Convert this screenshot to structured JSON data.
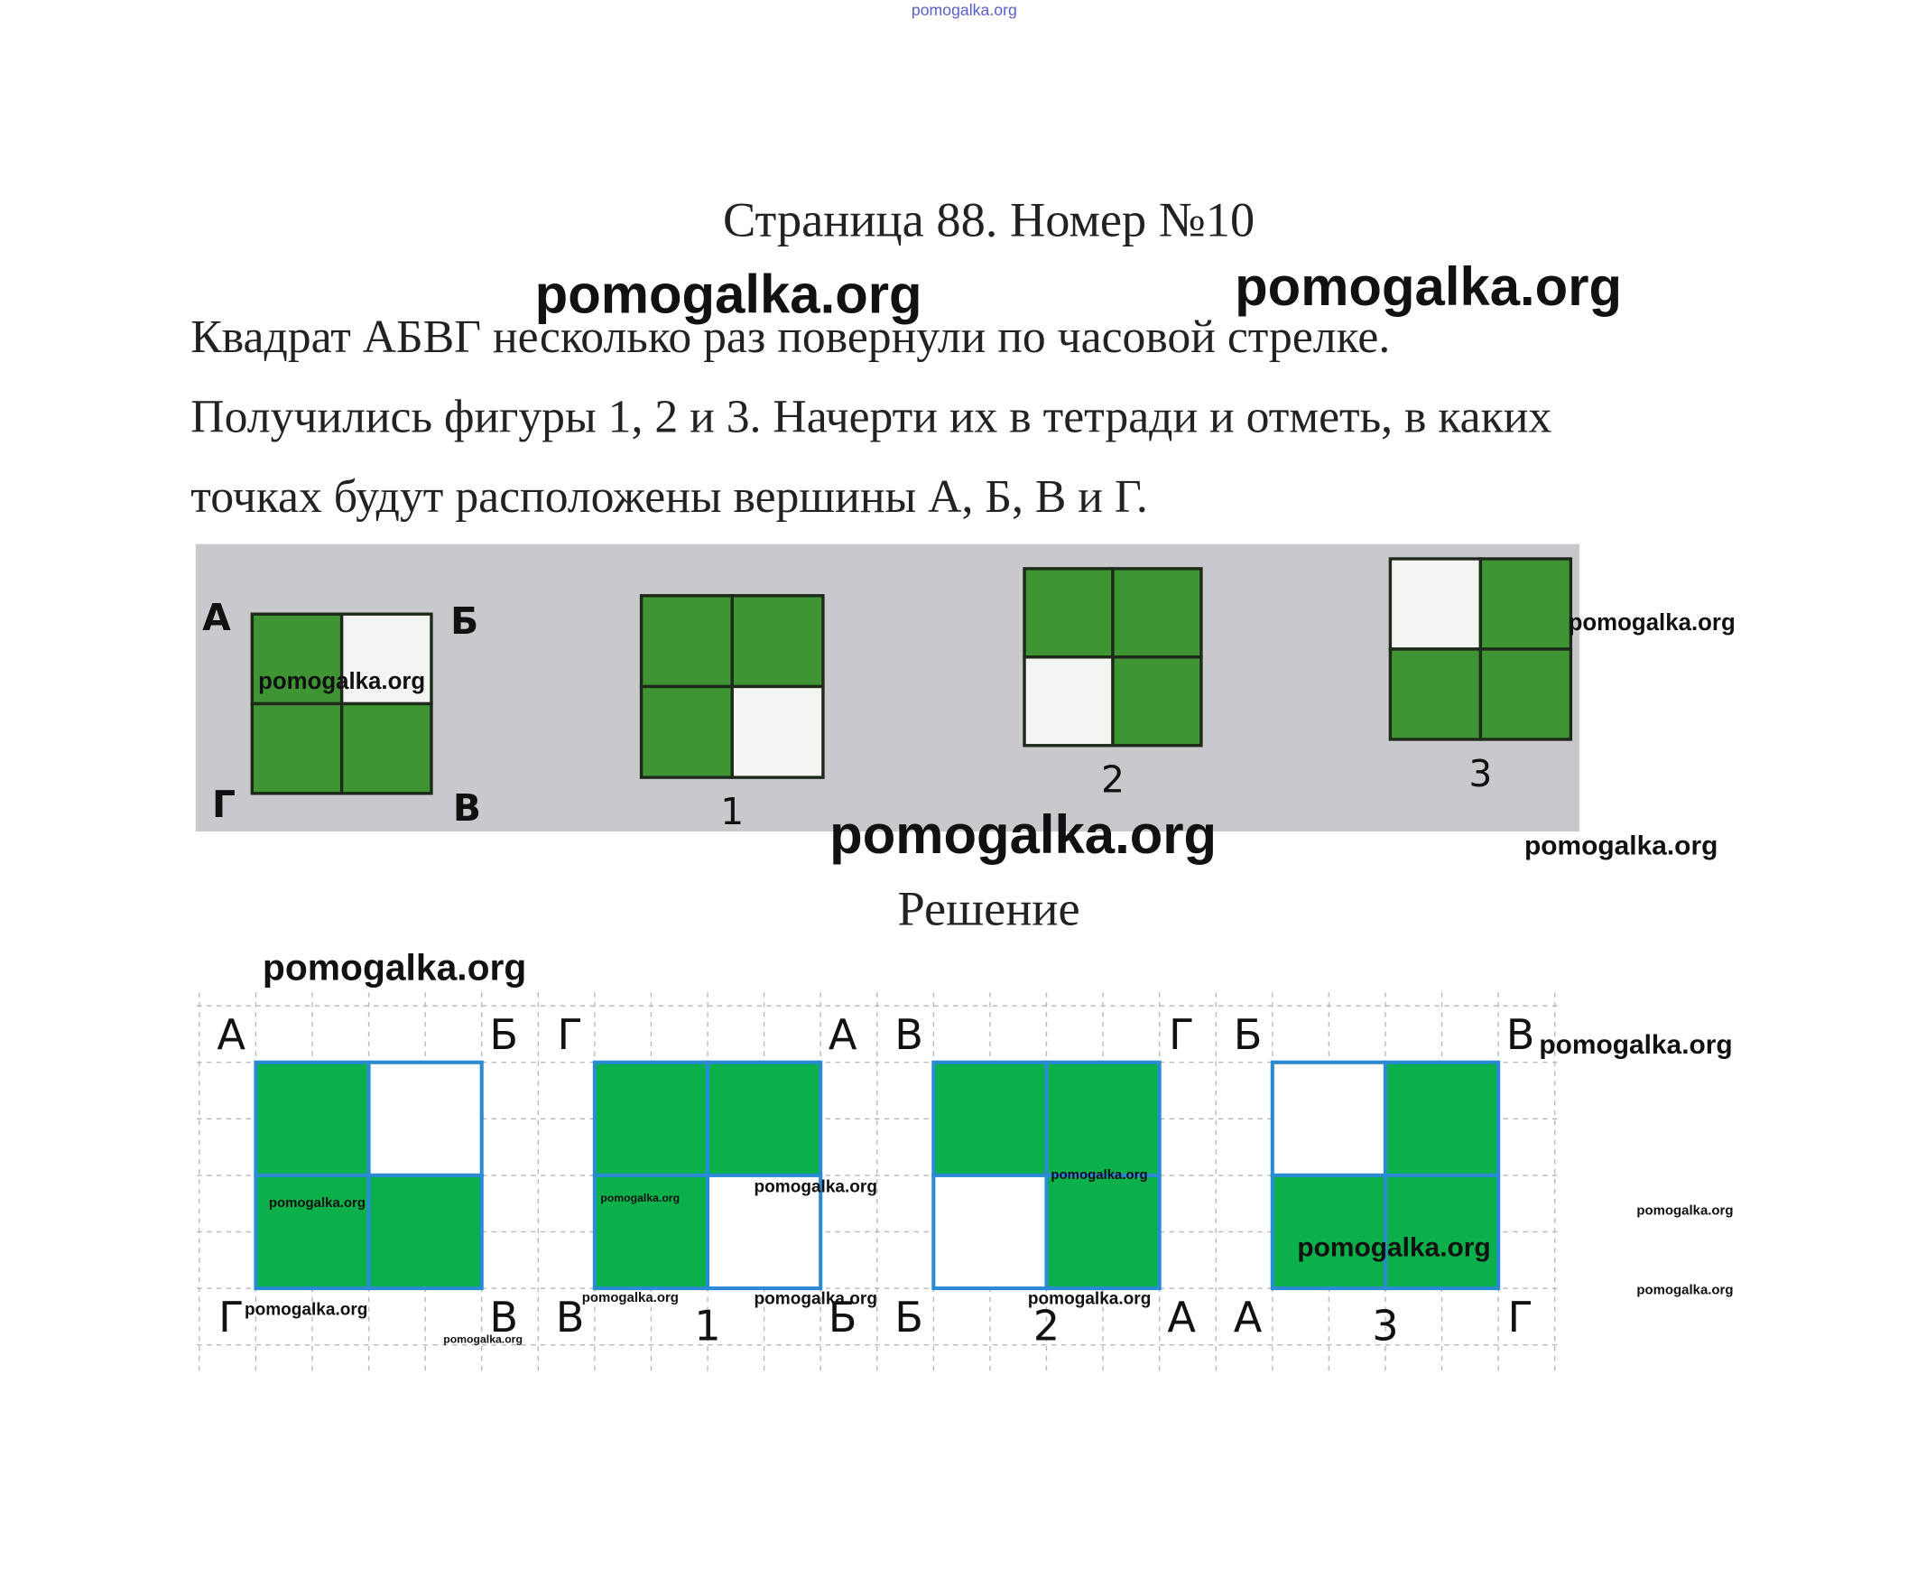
{
  "header": {
    "link": "pomogalka.org",
    "title": "Страница 88. Номер №10"
  },
  "problem": {
    "lines": [
      "Квадрат АБВГ несколько раз повернули по часовой стрелке.",
      "Получились фигуры 1, 2 и 3. Начерти их в тетради и отметь, в каких",
      "точках будут расположены вершины А, Б, В и Г."
    ]
  },
  "figure": {
    "labels": [
      "А",
      "Б",
      "Г",
      "В"
    ],
    "captions": [
      "1",
      "2",
      "3"
    ]
  },
  "solution": {
    "title": "Решение",
    "figures": [
      {
        "labels": [
          "А",
          "Б",
          "Г",
          "В"
        ]
      },
      {
        "labels": [
          "Г",
          "А",
          "В",
          "Б"
        ],
        "caption": "1"
      },
      {
        "labels": [
          "В",
          "Г",
          "Б",
          "А"
        ],
        "caption": "2"
      },
      {
        "labels": [
          "Б",
          "В",
          "А",
          "Г"
        ],
        "caption": "3"
      }
    ]
  },
  "watermarks": [
    "pomogalka.org",
    "pomogalka.org",
    "pomogalka.org",
    "pomogalka.org",
    "pomogalka.org",
    "pomogalka.org",
    "pomogalka.org",
    "pomogalka.org",
    "pomogalka.org",
    "pomogalka.org",
    "pomogalka.org",
    "pomogalka.org",
    "pomogalka.org",
    "pomogalka.org",
    "pomogalka.org",
    "pomogalka.org",
    "pomogalka.org",
    "pomogalka.org",
    "pomogalka.org",
    "pomogalka.org"
  ]
}
